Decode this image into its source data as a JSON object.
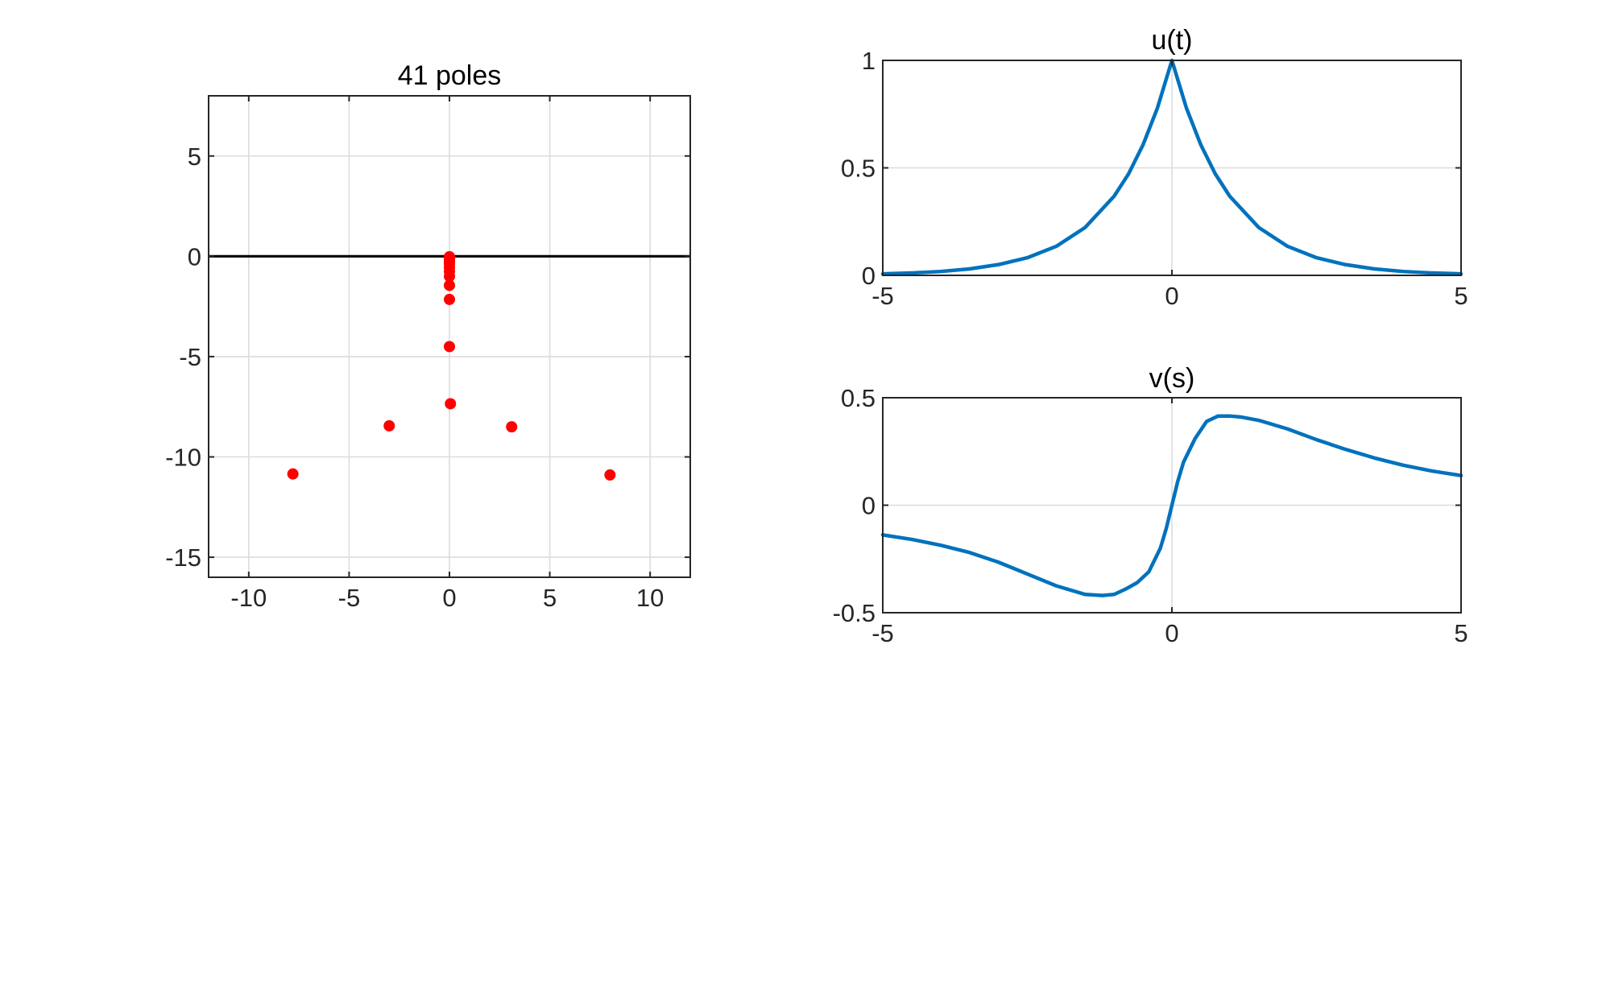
{
  "figure": {
    "background": "#ffffff",
    "axes_color": "#262626",
    "grid_color": "#dcdcdc"
  },
  "chart_data": [
    {
      "type": "scatter",
      "title": "41 poles",
      "xlabel": "",
      "ylabel": "",
      "xlim": [
        -12,
        12
      ],
      "ylim": [
        -16,
        8
      ],
      "xticks": [
        -10,
        -5,
        0,
        5,
        10
      ],
      "xtick_labels": [
        "-10",
        "-5",
        "0",
        "5",
        "10"
      ],
      "yticks": [
        5,
        0,
        -5,
        -10,
        -15
      ],
      "ytick_labels": [
        "5",
        "0",
        "-5",
        "-10",
        "-15"
      ],
      "grid": true,
      "reference_line": {
        "y": 0,
        "color": "#000000"
      },
      "marker_color": "#ff0000",
      "points": [
        {
          "x": 0.0,
          "y": -0.02
        },
        {
          "x": 0.0,
          "y": -0.08
        },
        {
          "x": 0.0,
          "y": -0.15
        },
        {
          "x": 0.0,
          "y": -0.25
        },
        {
          "x": 0.0,
          "y": -0.38
        },
        {
          "x": 0.0,
          "y": -0.55
        },
        {
          "x": 0.0,
          "y": -0.75
        },
        {
          "x": 0.0,
          "y": -1.0
        },
        {
          "x": 0.0,
          "y": -1.45
        },
        {
          "x": 0.0,
          "y": -2.15
        },
        {
          "x": 0.0,
          "y": -4.5
        },
        {
          "x": 0.05,
          "y": -7.35
        },
        {
          "x": -3.0,
          "y": -8.45
        },
        {
          "x": 3.1,
          "y": -8.5
        },
        {
          "x": -7.8,
          "y": -10.85
        },
        {
          "x": 8.0,
          "y": -10.9
        }
      ]
    },
    {
      "type": "line",
      "title": "u(t)",
      "xlabel": "",
      "ylabel": "",
      "xlim": [
        -5,
        5
      ],
      "ylim": [
        0,
        1
      ],
      "xticks": [
        -5,
        0,
        5
      ],
      "xtick_labels": [
        "-5",
        "0",
        "5"
      ],
      "yticks": [
        1,
        0.5,
        0
      ],
      "ytick_labels": [
        "1",
        "0.5",
        "0"
      ],
      "grid": true,
      "line_color": "#0072bd",
      "x": [
        -5,
        -4.5,
        -4,
        -3.5,
        -3,
        -2.5,
        -2,
        -1.5,
        -1,
        -0.75,
        -0.5,
        -0.25,
        0,
        0.25,
        0.5,
        0.75,
        1,
        1.5,
        2,
        2.5,
        3,
        3.5,
        4,
        4.5,
        5
      ],
      "y": [
        0.007,
        0.011,
        0.018,
        0.03,
        0.05,
        0.082,
        0.135,
        0.223,
        0.368,
        0.472,
        0.607,
        0.779,
        1.0,
        0.779,
        0.607,
        0.472,
        0.368,
        0.223,
        0.135,
        0.082,
        0.05,
        0.03,
        0.018,
        0.011,
        0.007
      ]
    },
    {
      "type": "line",
      "title": "v(s)",
      "xlabel": "",
      "ylabel": "",
      "xlim": [
        -5,
        5
      ],
      "ylim": [
        -0.5,
        0.5
      ],
      "xticks": [
        -5,
        0,
        5
      ],
      "xtick_labels": [
        "-5",
        "0",
        "5"
      ],
      "yticks": [
        0.5,
        0,
        -0.5
      ],
      "ytick_labels": [
        "0.5",
        "0",
        "-0.5"
      ],
      "grid": true,
      "line_color": "#0072bd",
      "x": [
        -5,
        -4.5,
        -4,
        -3.5,
        -3,
        -2.5,
        -2,
        -1.5,
        -1.2,
        -1,
        -0.8,
        -0.6,
        -0.4,
        -0.2,
        -0.1,
        0,
        0.1,
        0.2,
        0.4,
        0.6,
        0.8,
        1,
        1.2,
        1.5,
        2,
        2.5,
        3,
        3.5,
        4,
        4.5,
        5
      ],
      "y": [
        -0.138,
        -0.159,
        -0.186,
        -0.22,
        -0.265,
        -0.32,
        -0.375,
        -0.415,
        -0.42,
        -0.415,
        -0.39,
        -0.36,
        -0.31,
        -0.2,
        -0.11,
        0,
        0.11,
        0.2,
        0.31,
        0.39,
        0.415,
        0.415,
        0.41,
        0.395,
        0.355,
        0.305,
        0.26,
        0.22,
        0.186,
        0.159,
        0.138
      ]
    }
  ]
}
